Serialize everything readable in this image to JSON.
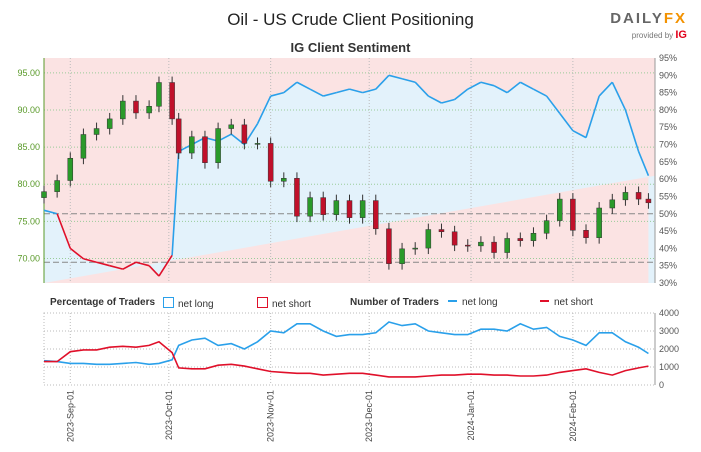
{
  "header": {
    "title": "Oil - US Crude Client Positioning",
    "subtitle": "IG Client Sentiment",
    "logo": "DAILYFX",
    "provided_by": "provided by",
    "provider": "IG"
  },
  "legend": {
    "pct_label": "Percentage of Traders",
    "pct_long": "net long",
    "pct_short": "net short",
    "num_label": "Number of Traders",
    "num_long": "net long",
    "num_short": "net short"
  },
  "colors": {
    "long": "#2aa0ea",
    "short": "#e0102a",
    "long_bg": "#e3f2fb",
    "short_bg": "#fbe3e3",
    "price_axis": "#5a9a2a"
  },
  "chart_data": [
    {
      "type": "candlestick+line",
      "title": "IG Client Sentiment",
      "y_left_ticks": [
        "95.00",
        "90.00",
        "85.00",
        "80.00",
        "75.00",
        "70.00"
      ],
      "ylim_left": [
        66.7,
        97
      ],
      "y_right_ticks": [
        "95%",
        "90%",
        "85%",
        "80%",
        "75%",
        "70%",
        "65%",
        "60%",
        "55%",
        "50%",
        "45%",
        "40%",
        "35%",
        "30%"
      ],
      "ylim_right": [
        30,
        95
      ],
      "x": [
        "2023-08-24",
        "2023-08-28",
        "2023-09-01",
        "2023-09-05",
        "2023-09-09",
        "2023-09-13",
        "2023-09-17",
        "2023-09-21",
        "2023-09-25",
        "2023-09-28",
        "2023-10-02",
        "2023-10-04",
        "2023-10-08",
        "2023-10-12",
        "2023-10-16",
        "2023-10-20",
        "2023-10-24",
        "2023-10-28",
        "2023-11-01",
        "2023-11-05",
        "2023-11-09",
        "2023-11-13",
        "2023-11-17",
        "2023-11-21",
        "2023-11-25",
        "2023-11-29",
        "2023-12-03",
        "2023-12-07",
        "2023-12-11",
        "2023-12-15",
        "2023-12-19",
        "2023-12-23",
        "2023-12-27",
        "2023-12-31",
        "2024-01-04",
        "2024-01-08",
        "2024-01-12",
        "2024-01-16",
        "2024-01-20",
        "2024-01-24",
        "2024-01-28",
        "2024-02-01",
        "2024-02-05",
        "2024-02-09",
        "2024-02-13",
        "2024-02-17",
        "2024-02-21",
        "2024-02-24"
      ],
      "price_close": [
        79.0,
        80.5,
        83.5,
        86.7,
        87.5,
        88.8,
        91.2,
        89.6,
        90.5,
        93.7,
        88.8,
        84.2,
        86.4,
        82.9,
        87.5,
        88.0,
        85.5,
        85.5,
        80.4,
        80.8,
        75.7,
        78.2,
        75.9,
        77.8,
        75.5,
        77.8,
        74.0,
        69.3,
        71.3,
        71.4,
        73.9,
        73.6,
        71.8,
        71.7,
        72.2,
        70.8,
        72.7,
        72.4,
        73.4,
        75.1,
        78.0,
        73.8,
        72.8,
        76.8,
        77.9,
        78.9,
        78.0,
        77.5
      ],
      "net_long_pct": [
        51,
        50,
        40,
        37,
        36,
        35,
        34,
        36,
        35,
        32,
        38,
        68,
        70,
        72,
        71,
        73,
        70,
        76,
        84,
        85,
        88,
        86,
        84,
        85,
        86,
        85,
        86,
        90,
        89,
        88,
        84,
        82,
        83,
        86,
        88,
        87,
        85,
        88,
        86,
        84,
        79,
        74,
        72,
        84,
        88,
        80,
        68,
        61
      ]
    },
    {
      "type": "line",
      "y_ticks": [
        "4000",
        "3000",
        "2000",
        "1000",
        "0"
      ],
      "ylim": [
        0,
        4000
      ],
      "x_ticks": [
        "2023-Sep-01",
        "2023-Oct-01",
        "2023-Nov-01",
        "2023-Dec-01",
        "2024-Jan-01",
        "2024-Feb-01"
      ],
      "series": [
        {
          "name": "net long",
          "values": [
            1350,
            1300,
            1200,
            1200,
            1150,
            1150,
            1200,
            1250,
            1150,
            1200,
            1400,
            2200,
            2500,
            2600,
            2200,
            2300,
            2000,
            2400,
            3000,
            2900,
            3400,
            3400,
            3000,
            2700,
            2800,
            2800,
            2900,
            3500,
            3300,
            3400,
            3000,
            2900,
            2800,
            2800,
            3100,
            3100,
            3000,
            3400,
            3100,
            3200,
            2700,
            2500,
            2200,
            2900,
            2900,
            2400,
            2100,
            1750
          ]
        },
        {
          "name": "net short",
          "values": [
            1300,
            1300,
            1850,
            1950,
            1950,
            2100,
            2150,
            2100,
            2200,
            2400,
            1800,
            950,
            900,
            900,
            1100,
            1150,
            1050,
            900,
            750,
            700,
            650,
            650,
            550,
            600,
            650,
            650,
            550,
            450,
            450,
            450,
            500,
            550,
            550,
            600,
            600,
            550,
            550,
            500,
            500,
            550,
            700,
            800,
            900,
            700,
            550,
            800,
            950,
            1050
          ]
        }
      ]
    }
  ]
}
